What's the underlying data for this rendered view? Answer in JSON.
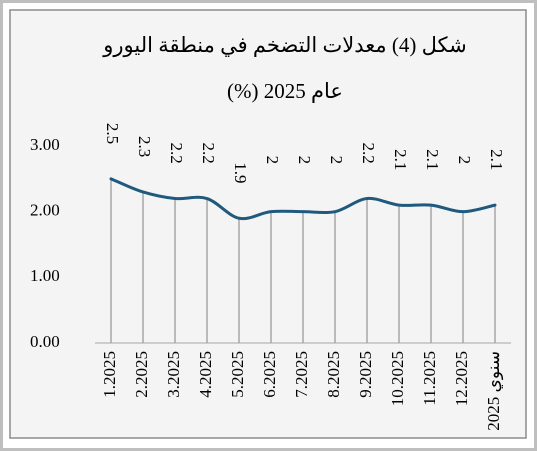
{
  "chart_data": {
    "type": "line",
    "title_lines": [
      "شكل (4) معدلات التضخم في منطقة اليورو",
      "عام 2025 (%)"
    ],
    "categories": [
      "1.2025",
      "2.2025",
      "3.2025",
      "4.2025",
      "5.2025",
      "6.2025",
      "7.2025",
      "8.2025",
      "9.2025",
      "10.2025",
      "11.2025",
      "12.2025",
      "2025 سنوي"
    ],
    "values": [
      2.5,
      2.3,
      2.2,
      2.2,
      1.9,
      2,
      2,
      2,
      2.2,
      2.1,
      2.1,
      2,
      2.1
    ],
    "color": "#1f5a7e",
    "drop_line_color": "#a6a6a6",
    "ylim": [
      0,
      3
    ],
    "yticks": [
      {
        "value": 0,
        "label": "0.00"
      },
      {
        "value": 1,
        "label": "1.00"
      },
      {
        "value": 2,
        "label": "2.00"
      },
      {
        "value": 3,
        "label": "3.00"
      }
    ],
    "grid": false
  }
}
